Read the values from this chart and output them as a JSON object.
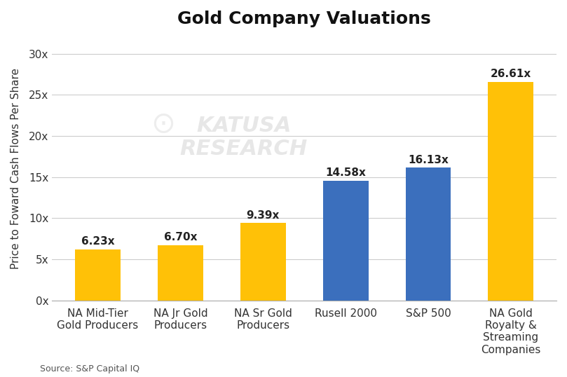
{
  "title": "Gold Company Valuations",
  "ylabel": "Price to Foward Cash Flows Per Share",
  "source": "Source: S&P Capital IQ",
  "categories": [
    "NA Mid-Tier\nGold Producers",
    "NA Jr Gold\nProducers",
    "NA Sr Gold\nProducers",
    "Rusell 2000",
    "S&P 500",
    "NA Gold\nRoyalty &\nStreaming\nCompanies"
  ],
  "values": [
    6.23,
    6.7,
    9.39,
    14.58,
    16.13,
    26.61
  ],
  "labels": [
    "6.23x",
    "6.70x",
    "9.39x",
    "14.58x",
    "16.13x",
    "26.61x"
  ],
  "colors": [
    "#FFC107",
    "#FFC107",
    "#FFC107",
    "#3B6FBD",
    "#3B6FBD",
    "#FFC107"
  ],
  "ylim": [
    0,
    32
  ],
  "yticks": [
    0,
    5,
    10,
    15,
    20,
    25,
    30
  ],
  "ytick_labels": [
    "0x",
    "5x",
    "10x",
    "15x",
    "20x",
    "25x",
    "30x"
  ],
  "background_color": "#FFFFFF",
  "grid_color": "#CCCCCC",
  "title_fontsize": 18,
  "label_fontsize": 11,
  "tick_fontsize": 11,
  "bar_width": 0.55
}
